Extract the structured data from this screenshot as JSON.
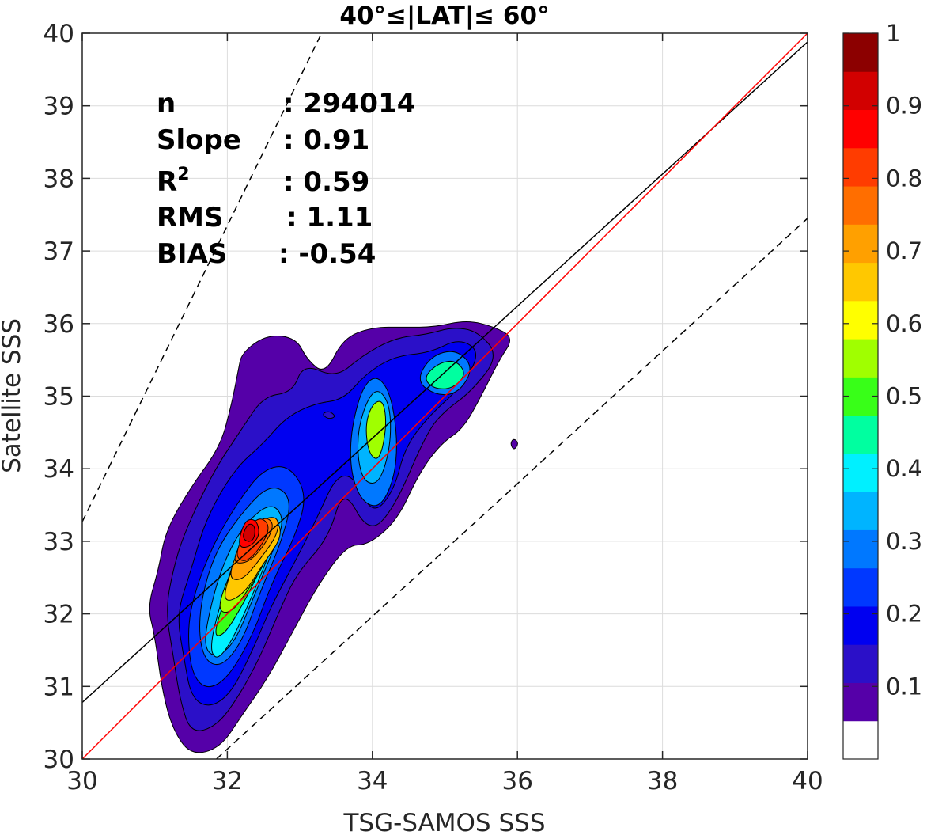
{
  "chart_data": {
    "type": "contour",
    "title": "40°≤|LAT|≤ 60°",
    "xlabel": "TSG-SAMOS SSS",
    "ylabel": "Satellite SSS",
    "xlim": [
      30,
      40
    ],
    "ylim": [
      30,
      40
    ],
    "xticks": [
      "30",
      "32",
      "34",
      "36",
      "38",
      "40"
    ],
    "yticks": [
      "30",
      "31",
      "32",
      "33",
      "34",
      "35",
      "36",
      "37",
      "38",
      "39",
      "40"
    ],
    "grid": true,
    "stats": [
      {
        "label": "n",
        "value": ": 294014"
      },
      {
        "label": "Slope",
        "value": ": 0.91"
      },
      {
        "label": "R",
        "sup": "2",
        "value": ": 0.59"
      },
      {
        "label": "RMS",
        "value": ": 1.11"
      },
      {
        "label": "BIAS",
        "value": ": -0.54"
      }
    ],
    "one_to_one_line": {
      "x": [
        30,
        40
      ],
      "y": [
        30,
        40
      ],
      "color": "#ff0000"
    },
    "fit_line": {
      "x": [
        30,
        40
      ],
      "y": [
        30.78,
        39.88
      ],
      "color": "#000000"
    },
    "envelope_lines": [
      {
        "x": [
          30,
          33.3
        ],
        "y": [
          33.27,
          40.0
        ],
        "style": "dashed"
      },
      {
        "x": [
          31.85,
          40
        ],
        "y": [
          30.0,
          37.45
        ],
        "style": "dashed"
      }
    ],
    "density_peak": {
      "x": 32.25,
      "y": 33.15
    },
    "secondary_peaks": [
      {
        "x": 34.0,
        "y": 34.5
      },
      {
        "x": 35.1,
        "y": 35.3
      }
    ],
    "colorbar": {
      "ticks": [
        "0.1",
        "0.2",
        "0.3",
        "0.4",
        "0.5",
        "0.6",
        "0.7",
        "0.8",
        "0.9",
        "1"
      ],
      "range": [
        0,
        1
      ],
      "colors": [
        "#ffffff",
        "#5500a8",
        "#2b10c8",
        "#0000f0",
        "#0038ff",
        "#0078ff",
        "#00b4ff",
        "#00f0ff",
        "#00ffa0",
        "#38ff18",
        "#a0ff00",
        "#ffff00",
        "#ffc800",
        "#ffa000",
        "#ff6e00",
        "#ff3c00",
        "#ff0000",
        "#d20000",
        "#8c0000"
      ]
    }
  }
}
